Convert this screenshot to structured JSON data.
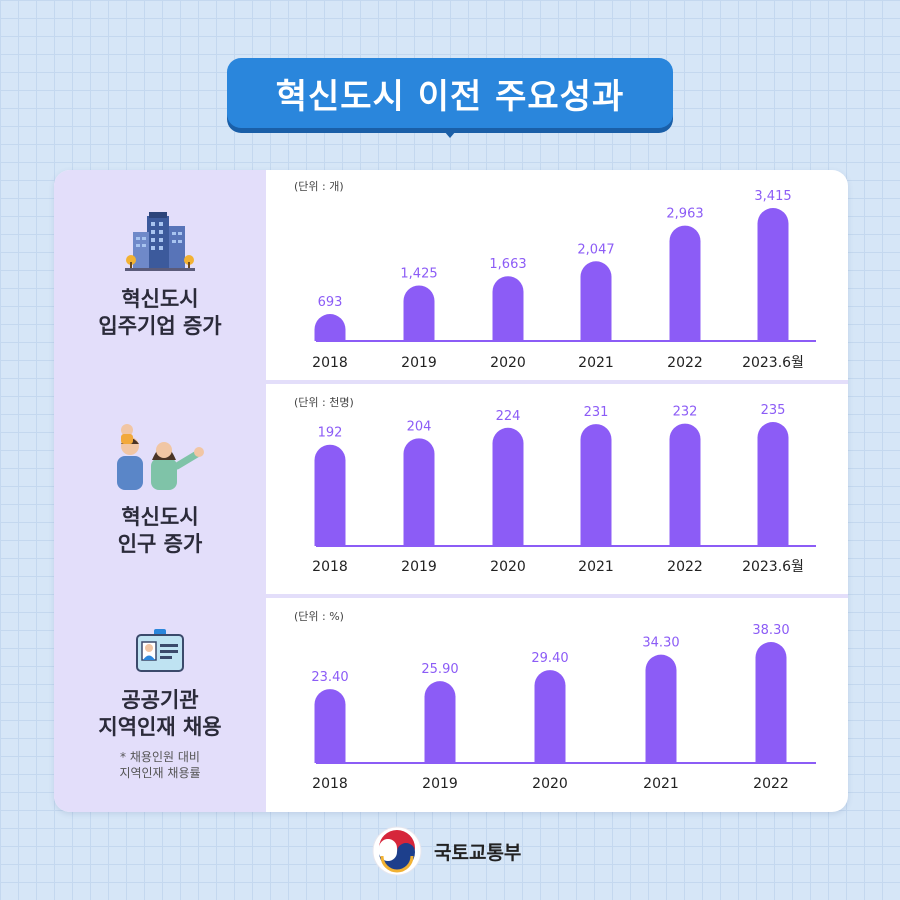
{
  "title": "혁신도시 이전 주요성과",
  "colors": {
    "bar": "#8c5cf6",
    "label": "#8c5cf6",
    "baseline": "#8c5cf6",
    "title_bg": "#2a86dc"
  },
  "logo": {
    "name": "국토교통부"
  },
  "chart_data": [
    {
      "type": "bar",
      "title": "혁신도시\n입주기업 증가",
      "unit_label": "(단위 : 개)",
      "categories": [
        "2018",
        "2019",
        "2020",
        "2021",
        "2022",
        "2023.6월"
      ],
      "values": [
        693,
        1425,
        1663,
        2047,
        2963,
        3415
      ],
      "value_labels": [
        "693",
        "1,425",
        "1,663",
        "2,047",
        "2,963",
        "3,415"
      ],
      "ylim": [
        0,
        3415
      ]
    },
    {
      "type": "bar",
      "title": "혁신도시\n인구 증가",
      "unit_label": "(단위 : 천명)",
      "categories": [
        "2018",
        "2019",
        "2020",
        "2021",
        "2022",
        "2023.6월"
      ],
      "values": [
        192,
        204,
        224,
        231,
        232,
        235
      ],
      "value_labels": [
        "192",
        "204",
        "224",
        "231",
        "232",
        "235"
      ],
      "ylim": [
        0,
        235
      ]
    },
    {
      "type": "bar",
      "title": "공공기관\n지역인재 채용",
      "note": "* 채용인원 대비\n지역인재 채용률",
      "unit_label": "(단위 : %)",
      "categories": [
        "2018",
        "2019",
        "2020",
        "2021",
        "2022"
      ],
      "values": [
        23.4,
        25.9,
        29.4,
        34.3,
        38.3
      ],
      "value_labels": [
        "23.40",
        "25.90",
        "29.40",
        "34.30",
        "38.30"
      ],
      "ylim": [
        0,
        38.3
      ]
    }
  ]
}
